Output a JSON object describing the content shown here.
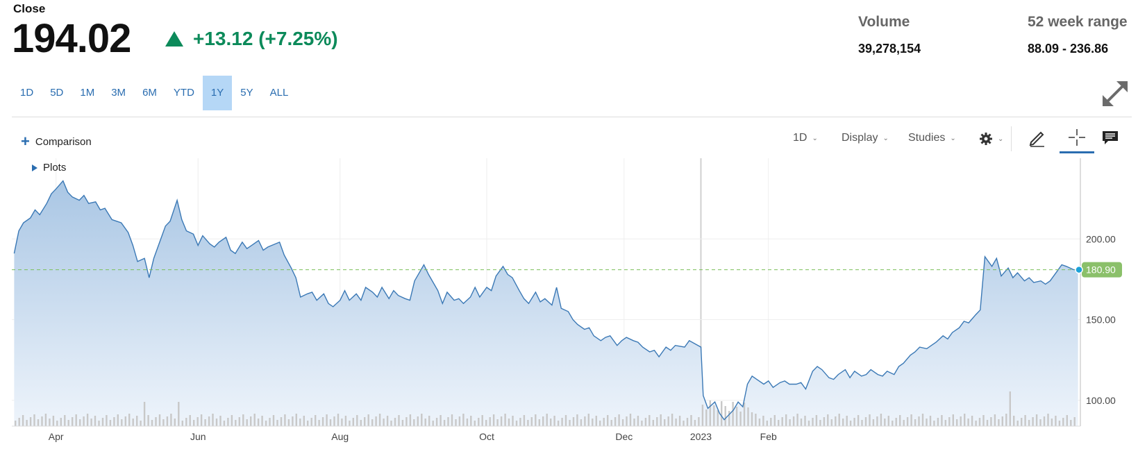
{
  "quote": {
    "close_label": "Close",
    "price": "194.02",
    "change": "+13.12 (+7.25%)",
    "change_color": "#0c8a5a"
  },
  "stats": {
    "volume_label": "Volume",
    "volume_value": "39,278,154",
    "range_label": "52 week range",
    "range_value": "88.09 - 236.86"
  },
  "ranges": [
    {
      "label": "1D"
    },
    {
      "label": "5D"
    },
    {
      "label": "1M"
    },
    {
      "label": "3M"
    },
    {
      "label": "6M"
    },
    {
      "label": "YTD"
    },
    {
      "label": "1Y",
      "active": true
    },
    {
      "label": "5Y"
    },
    {
      "label": "ALL"
    }
  ],
  "toolbar": {
    "comparison": "Comparison",
    "interval": "1D",
    "display": "Display",
    "studies": "Studies",
    "plots": "Plots",
    "icons": [
      "gear-icon",
      "pencil-icon",
      "crosshair-icon",
      "comment-icon",
      "expand-icon"
    ]
  },
  "colors": {
    "line": "#3a78b5",
    "fill_top": "#a9c6e4",
    "fill_bottom": "#eef4fb",
    "reference_line": "#7bbf5a",
    "reference_badge": "#8bc06a",
    "active_range_bg": "#b5d7f6",
    "link": "#2a6db0"
  },
  "chart_data": {
    "type": "area",
    "xlabel": "",
    "ylabel": "",
    "ylim": [
      84,
      250
    ],
    "y_ticks": [
      100,
      150,
      200
    ],
    "y_tick_labels": [
      "100.00",
      "150.00",
      "200.00"
    ],
    "x_ticks": [
      {
        "label": "Apr",
        "x": "2022-04-01"
      },
      {
        "label": "Jun",
        "x": "2022-06-01"
      },
      {
        "label": "Aug",
        "x": "2022-08-01"
      },
      {
        "label": "Oct",
        "x": "2022-10-03"
      },
      {
        "label": "Dec",
        "x": "2022-12-01"
      },
      {
        "label": "2023",
        "x": "2023-01-03"
      },
      {
        "label": "Feb",
        "x": "2023-02-01"
      }
    ],
    "reference_value": 180.9,
    "reference_label": "180.90",
    "series": [
      {
        "points": [
          [
            "2022-03-14",
            191
          ],
          [
            "2022-03-16",
            205
          ],
          [
            "2022-03-18",
            210
          ],
          [
            "2022-03-21",
            213
          ],
          [
            "2022-03-23",
            218
          ],
          [
            "2022-03-25",
            215
          ],
          [
            "2022-03-28",
            222
          ],
          [
            "2022-03-30",
            228
          ],
          [
            "2022-04-01",
            231
          ],
          [
            "2022-04-04",
            236
          ],
          [
            "2022-04-06",
            229
          ],
          [
            "2022-04-08",
            226
          ],
          [
            "2022-04-11",
            224
          ],
          [
            "2022-04-13",
            227
          ],
          [
            "2022-04-15",
            222
          ],
          [
            "2022-04-18",
            223
          ],
          [
            "2022-04-20",
            218
          ],
          [
            "2022-04-22",
            219
          ],
          [
            "2022-04-25",
            212
          ],
          [
            "2022-04-27",
            211
          ],
          [
            "2022-04-29",
            210
          ],
          [
            "2022-05-02",
            204
          ],
          [
            "2022-05-04",
            196
          ],
          [
            "2022-05-06",
            186
          ],
          [
            "2022-05-09",
            188
          ],
          [
            "2022-05-11",
            176
          ],
          [
            "2022-05-13",
            188
          ],
          [
            "2022-05-16",
            200
          ],
          [
            "2022-05-18",
            208
          ],
          [
            "2022-05-20",
            211
          ],
          [
            "2022-05-23",
            224
          ],
          [
            "2022-05-25",
            212
          ],
          [
            "2022-05-27",
            205
          ],
          [
            "2022-05-30",
            203
          ],
          [
            "2022-06-01",
            196
          ],
          [
            "2022-06-03",
            202
          ],
          [
            "2022-06-06",
            197
          ],
          [
            "2022-06-08",
            195
          ],
          [
            "2022-06-10",
            198
          ],
          [
            "2022-06-13",
            201
          ],
          [
            "2022-06-15",
            193
          ],
          [
            "2022-06-17",
            191
          ],
          [
            "2022-06-20",
            198
          ],
          [
            "2022-06-22",
            194
          ],
          [
            "2022-06-24",
            196
          ],
          [
            "2022-06-27",
            199
          ],
          [
            "2022-06-29",
            193
          ],
          [
            "2022-07-01",
            195
          ],
          [
            "2022-07-06",
            198
          ],
          [
            "2022-07-08",
            190
          ],
          [
            "2022-07-11",
            182
          ],
          [
            "2022-07-13",
            176
          ],
          [
            "2022-07-15",
            164
          ],
          [
            "2022-07-18",
            166
          ],
          [
            "2022-07-20",
            167
          ],
          [
            "2022-07-22",
            162
          ],
          [
            "2022-07-25",
            166
          ],
          [
            "2022-07-27",
            160
          ],
          [
            "2022-07-29",
            158
          ],
          [
            "2022-08-01",
            162
          ],
          [
            "2022-08-03",
            168
          ],
          [
            "2022-08-05",
            162
          ],
          [
            "2022-08-08",
            166
          ],
          [
            "2022-08-10",
            162
          ],
          [
            "2022-08-12",
            170
          ],
          [
            "2022-08-15",
            167
          ],
          [
            "2022-08-17",
            164
          ],
          [
            "2022-08-19",
            170
          ],
          [
            "2022-08-22",
            163
          ],
          [
            "2022-08-24",
            168
          ],
          [
            "2022-08-26",
            165
          ],
          [
            "2022-08-29",
            163
          ],
          [
            "2022-08-31",
            162
          ],
          [
            "2022-09-02",
            174
          ],
          [
            "2022-09-06",
            184
          ],
          [
            "2022-09-08",
            178
          ],
          [
            "2022-09-12",
            168
          ],
          [
            "2022-09-14",
            160
          ],
          [
            "2022-09-16",
            167
          ],
          [
            "2022-09-19",
            162
          ],
          [
            "2022-09-21",
            163
          ],
          [
            "2022-09-23",
            160
          ],
          [
            "2022-09-26",
            164
          ],
          [
            "2022-09-28",
            170
          ],
          [
            "2022-09-30",
            164
          ],
          [
            "2022-10-03",
            170
          ],
          [
            "2022-10-05",
            168
          ],
          [
            "2022-10-07",
            177
          ],
          [
            "2022-10-10",
            183
          ],
          [
            "2022-10-12",
            178
          ],
          [
            "2022-10-14",
            176
          ],
          [
            "2022-10-17",
            168
          ],
          [
            "2022-10-19",
            163
          ],
          [
            "2022-10-21",
            160
          ],
          [
            "2022-10-24",
            167
          ],
          [
            "2022-10-26",
            161
          ],
          [
            "2022-10-28",
            163
          ],
          [
            "2022-10-31",
            159
          ],
          [
            "2022-11-02",
            170
          ],
          [
            "2022-11-04",
            157
          ],
          [
            "2022-11-07",
            155
          ],
          [
            "2022-11-09",
            150
          ],
          [
            "2022-11-11",
            147
          ],
          [
            "2022-11-14",
            144
          ],
          [
            "2022-11-16",
            145
          ],
          [
            "2022-11-18",
            140
          ],
          [
            "2022-11-21",
            137
          ],
          [
            "2022-11-23",
            139
          ],
          [
            "2022-11-25",
            140
          ],
          [
            "2022-11-28",
            134
          ],
          [
            "2022-11-30",
            137
          ],
          [
            "2022-12-02",
            139
          ],
          [
            "2022-12-05",
            137
          ],
          [
            "2022-12-07",
            136
          ],
          [
            "2022-12-09",
            133
          ],
          [
            "2022-12-12",
            130
          ],
          [
            "2022-12-14",
            131
          ],
          [
            "2022-12-16",
            127
          ],
          [
            "2022-12-19",
            133
          ],
          [
            "2022-12-21",
            131
          ],
          [
            "2022-12-23",
            134
          ],
          [
            "2022-12-27",
            133
          ],
          [
            "2022-12-29",
            137
          ],
          [
            "2023-01-03",
            133
          ],
          [
            "2023-01-04",
            103
          ],
          [
            "2023-01-06",
            95
          ],
          [
            "2023-01-09",
            99
          ],
          [
            "2023-01-11",
            92
          ],
          [
            "2023-01-13",
            88
          ],
          [
            "2023-01-17",
            94
          ],
          [
            "2023-01-19",
            99
          ],
          [
            "2023-01-21",
            96
          ],
          [
            "2023-01-23",
            110
          ],
          [
            "2023-01-25",
            115
          ],
          [
            "2023-01-27",
            113
          ],
          [
            "2023-01-30",
            110
          ],
          [
            "2023-02-01",
            112
          ],
          [
            "2023-02-03",
            108
          ],
          [
            "2023-02-06",
            111
          ],
          [
            "2023-02-08",
            112
          ],
          [
            "2023-02-10",
            110
          ],
          [
            "2023-02-13",
            110
          ],
          [
            "2023-02-15",
            111
          ],
          [
            "2023-02-17",
            107
          ],
          [
            "2023-02-20",
            118
          ],
          [
            "2023-02-22",
            121
          ],
          [
            "2023-02-24",
            119
          ],
          [
            "2023-02-27",
            114
          ],
          [
            "2023-03-01",
            113
          ],
          [
            "2023-03-03",
            116
          ],
          [
            "2023-03-06",
            119
          ],
          [
            "2023-03-08",
            114
          ],
          [
            "2023-03-10",
            118
          ],
          [
            "2023-03-13",
            115
          ],
          [
            "2023-03-15",
            116
          ],
          [
            "2023-03-17",
            119
          ],
          [
            "2023-03-20",
            116
          ],
          [
            "2023-03-22",
            115
          ],
          [
            "2023-03-24",
            118
          ],
          [
            "2023-03-27",
            116
          ],
          [
            "2023-03-29",
            121
          ],
          [
            "2023-03-31",
            123
          ],
          [
            "2023-04-03",
            128
          ],
          [
            "2023-04-05",
            130
          ],
          [
            "2023-04-07",
            133
          ],
          [
            "2023-04-10",
            132
          ],
          [
            "2023-04-12",
            134
          ],
          [
            "2023-04-14",
            136
          ],
          [
            "2023-04-17",
            140
          ],
          [
            "2023-04-19",
            138
          ],
          [
            "2023-04-21",
            142
          ],
          [
            "2023-04-24",
            145
          ],
          [
            "2023-04-26",
            149
          ],
          [
            "2023-04-28",
            148
          ],
          [
            "2023-05-01",
            153
          ],
          [
            "2023-05-03",
            156
          ],
          [
            "2023-05-05",
            189
          ],
          [
            "2023-05-08",
            183
          ],
          [
            "2023-05-10",
            188
          ],
          [
            "2023-05-12",
            177
          ],
          [
            "2023-05-15",
            182
          ],
          [
            "2023-05-17",
            176
          ],
          [
            "2023-05-19",
            179
          ],
          [
            "2023-05-22",
            174
          ],
          [
            "2023-05-24",
            176
          ],
          [
            "2023-05-26",
            173
          ],
          [
            "2023-05-29",
            174
          ],
          [
            "2023-05-31",
            172
          ],
          [
            "2023-06-02",
            174
          ],
          [
            "2023-06-05",
            180
          ],
          [
            "2023-06-07",
            184
          ],
          [
            "2023-06-09",
            183
          ],
          [
            "2023-06-12",
            181
          ],
          [
            "2023-06-14",
            180.9
          ]
        ]
      }
    ],
    "volume_bars": "present (grey bars along the bottom)"
  }
}
